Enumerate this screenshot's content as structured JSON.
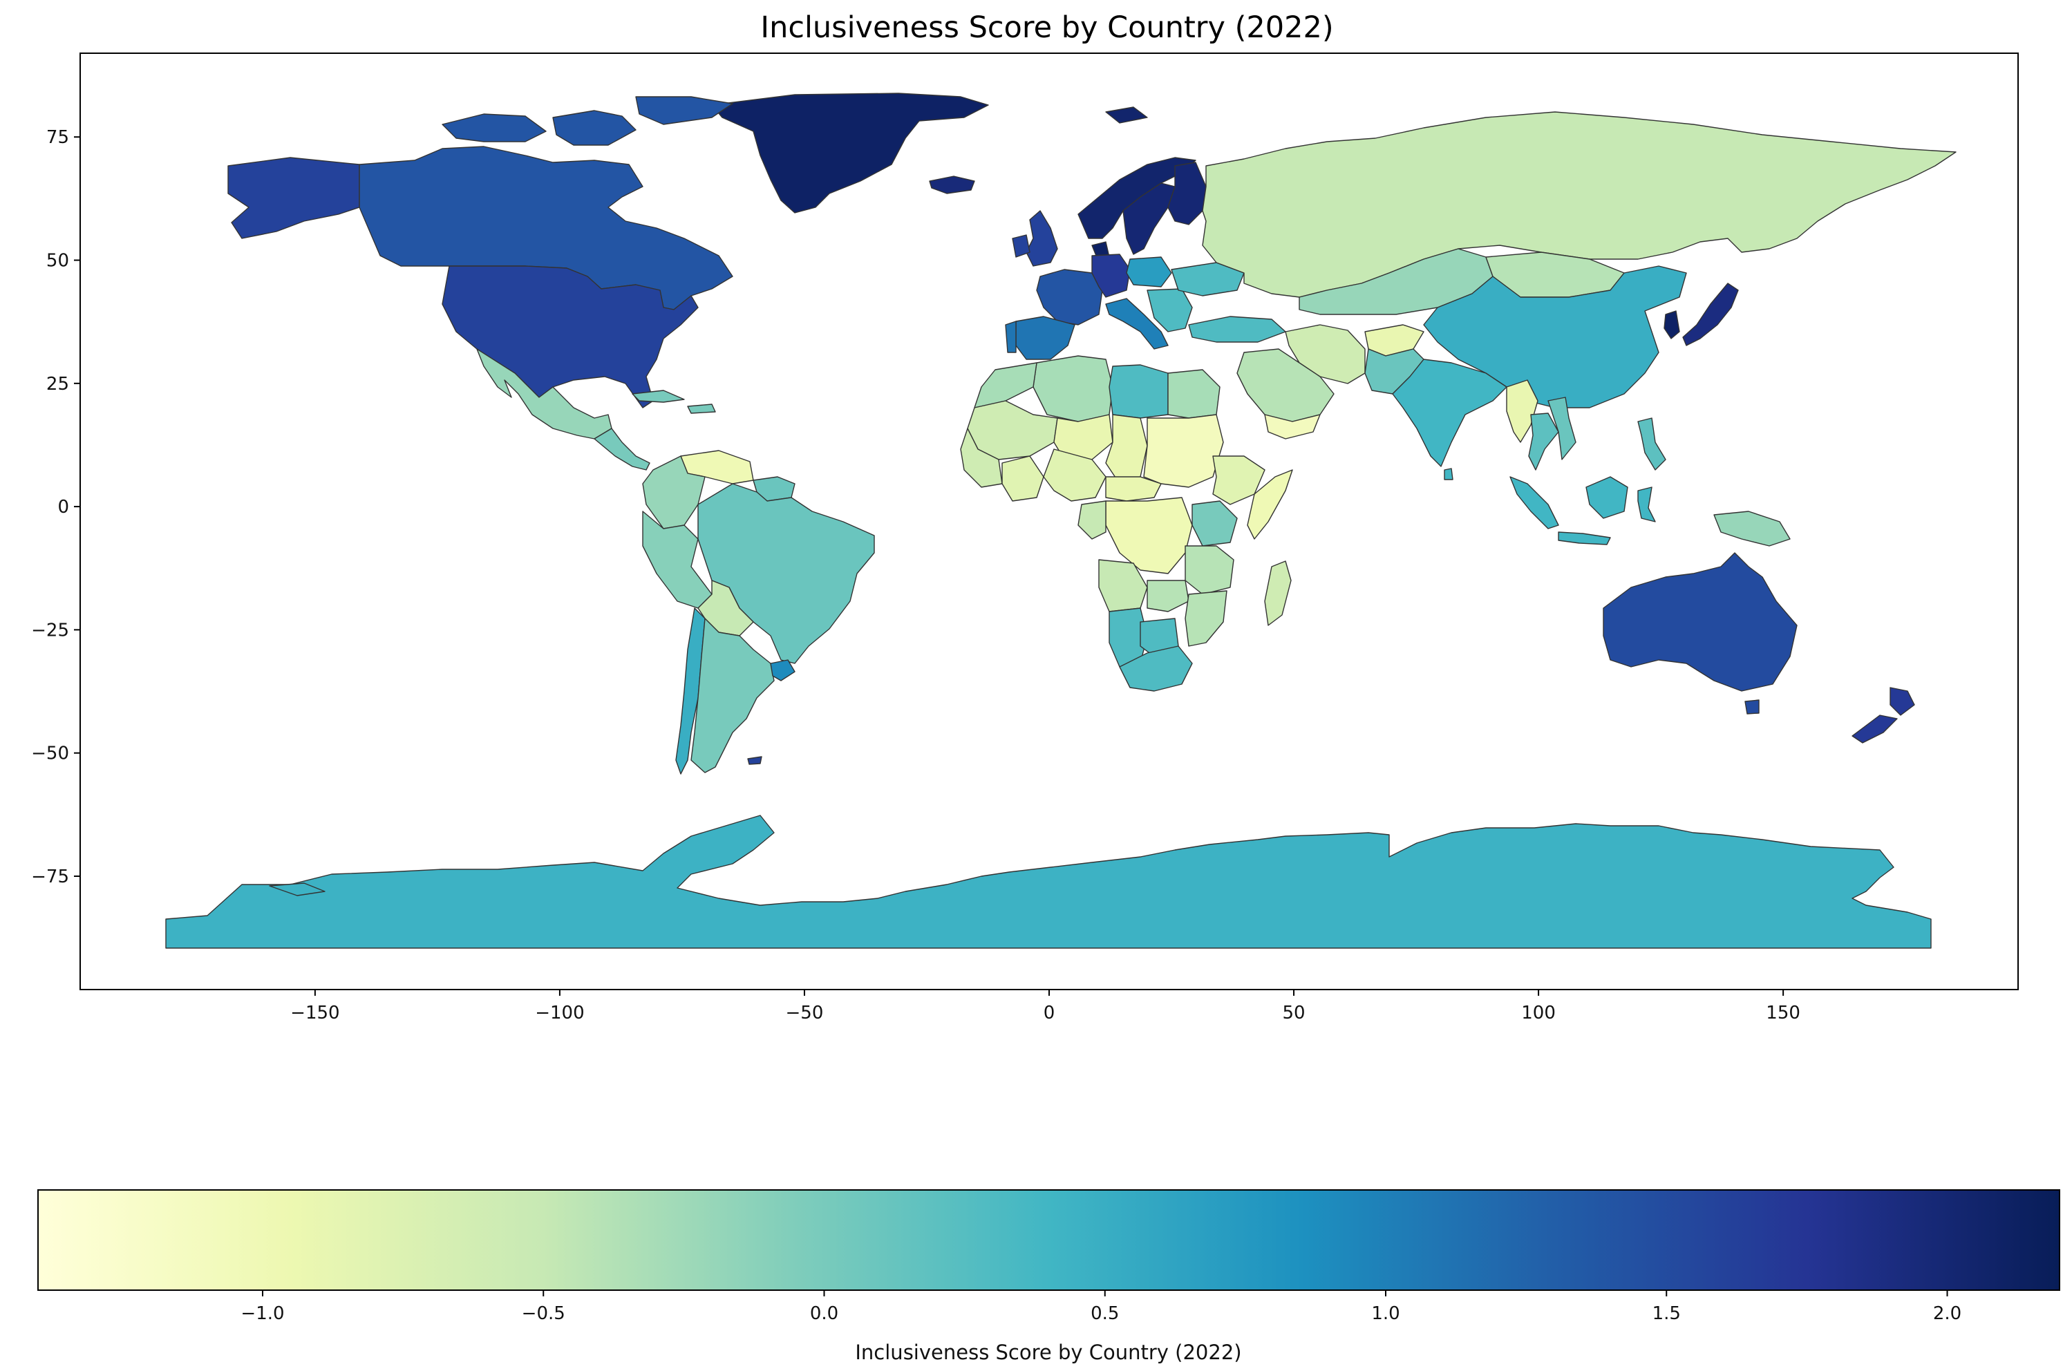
{
  "title": "Inclusiveness Score by Country (2022)",
  "chart_data": {
    "type": "choropleth",
    "title": "Inclusiveness Score by Country (2022)",
    "xlabel": "",
    "ylabel": "",
    "xlim": [
      -198,
      198
    ],
    "ylim": [
      -98,
      92
    ],
    "xticks": [
      -150,
      -100,
      -50,
      0,
      50,
      100,
      150
    ],
    "yticks": [
      75,
      50,
      25,
      0,
      -25,
      -50,
      -75
    ],
    "grid": false,
    "colorbar": {
      "label": "Inclusiveness Score by Country (2022)",
      "colormap": "YlGnBu",
      "range": [
        -1.4,
        2.2
      ],
      "ticks": [
        -1.0,
        -0.5,
        0.0,
        0.5,
        1.0,
        1.5,
        2.0
      ],
      "tick_labels": [
        "−1.0",
        "−0.5",
        "0.0",
        "0.5",
        "1.0",
        "1.5",
        "2.0"
      ],
      "orientation": "horizontal",
      "placement": "bottom"
    },
    "regions": [
      {
        "name": "Greenland",
        "value": 2.1
      },
      {
        "name": "Norway",
        "value": 2.05
      },
      {
        "name": "Sweden",
        "value": 2.0
      },
      {
        "name": "Finland",
        "value": 2.0
      },
      {
        "name": "Iceland",
        "value": 1.95
      },
      {
        "name": "Denmark",
        "value": 2.1
      },
      {
        "name": "New Zealand",
        "value": 1.7
      },
      {
        "name": "Japan",
        "value": 1.9
      },
      {
        "name": "South Korea",
        "value": 2.1
      },
      {
        "name": "Alaska (USA)",
        "value": 1.6
      },
      {
        "name": "United States",
        "value": 1.6
      },
      {
        "name": "Canada",
        "value": 1.4
      },
      {
        "name": "Australia",
        "value": 1.5
      },
      {
        "name": "United Kingdom",
        "value": 1.6
      },
      {
        "name": "Ireland",
        "value": 1.6
      },
      {
        "name": "Germany",
        "value": 1.7
      },
      {
        "name": "France",
        "value": 1.4
      },
      {
        "name": "Spain",
        "value": 1.1
      },
      {
        "name": "Portugal",
        "value": 1.1
      },
      {
        "name": "Italy",
        "value": 1.0
      },
      {
        "name": "Poland",
        "value": 0.7
      },
      {
        "name": "Ukraine",
        "value": 0.3
      },
      {
        "name": "Turkey",
        "value": 0.3
      },
      {
        "name": "Russia",
        "value": -0.5
      },
      {
        "name": "Kazakhstan",
        "value": -0.2
      },
      {
        "name": "Mongolia",
        "value": -0.4
      },
      {
        "name": "China",
        "value": 0.5
      },
      {
        "name": "India",
        "value": 0.4
      },
      {
        "name": "Pakistan",
        "value": 0.1
      },
      {
        "name": "Afghanistan",
        "value": -0.9
      },
      {
        "name": "Iran",
        "value": -0.6
      },
      {
        "name": "Saudi Arabia",
        "value": -0.4
      },
      {
        "name": "Yemen",
        "value": -1.1
      },
      {
        "name": "Myanmar",
        "value": -0.9
      },
      {
        "name": "Thailand",
        "value": 0.2
      },
      {
        "name": "Vietnam",
        "value": 0.1
      },
      {
        "name": "Indonesia",
        "value": 0.4
      },
      {
        "name": "Philippines",
        "value": 0.2
      },
      {
        "name": "Papua New Guinea",
        "value": -0.2
      },
      {
        "name": "Mexico",
        "value": -0.2
      },
      {
        "name": "Central America",
        "value": 0.0
      },
      {
        "name": "Venezuela",
        "value": -1.0
      },
      {
        "name": "Colombia",
        "value": -0.2
      },
      {
        "name": "Brazil",
        "value": 0.1
      },
      {
        "name": "Peru",
        "value": -0.1
      },
      {
        "name": "Bolivia",
        "value": -0.5
      },
      {
        "name": "Chile",
        "value": 0.5
      },
      {
        "name": "Argentina",
        "value": 0.0
      },
      {
        "name": "Uruguay",
        "value": 0.9
      },
      {
        "name": "Algeria",
        "value": -0.3
      },
      {
        "name": "Libya",
        "value": 0.3
      },
      {
        "name": "Egypt",
        "value": -0.3
      },
      {
        "name": "Sudan",
        "value": -1.1
      },
      {
        "name": "Chad",
        "value": -0.9
      },
      {
        "name": "Niger",
        "value": -0.9
      },
      {
        "name": "Mali",
        "value": -0.6
      },
      {
        "name": "Nigeria",
        "value": -0.8
      },
      {
        "name": "Ethiopia",
        "value": -0.8
      },
      {
        "name": "Somalia",
        "value": -1.0
      },
      {
        "name": "DR Congo",
        "value": -1.0
      },
      {
        "name": "Kenya",
        "value": 0.0
      },
      {
        "name": "Tanzania",
        "value": -0.4
      },
      {
        "name": "Angola",
        "value": -0.5
      },
      {
        "name": "Namibia",
        "value": 0.3
      },
      {
        "name": "South Africa",
        "value": 0.3
      },
      {
        "name": "Madagascar",
        "value": -0.6
      },
      {
        "name": "Antarctica",
        "value": 0.45
      }
    ]
  }
}
